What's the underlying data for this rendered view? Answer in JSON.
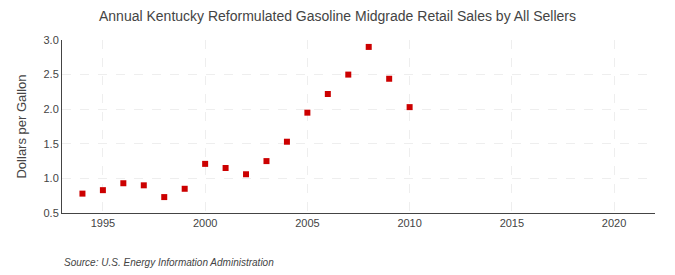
{
  "chart_data": {
    "type": "scatter",
    "title": "Annual Kentucky Reformulated Gasoline Midgrade Retail Sales by All Sellers",
    "ylabel": "Dollars per Gallon",
    "source": "Source: U.S. Energy Information Administration",
    "x": [
      1994,
      1995,
      1996,
      1997,
      1998,
      1999,
      2000,
      2001,
      2002,
      2003,
      2004,
      2005,
      2006,
      2007,
      2008,
      2009,
      2010
    ],
    "values": [
      0.78,
      0.83,
      0.93,
      0.9,
      0.73,
      0.85,
      1.21,
      1.15,
      1.06,
      1.25,
      1.53,
      1.95,
      2.22,
      2.5,
      2.9,
      2.44,
      2.03
    ],
    "color": "#cc0000",
    "marker": "square",
    "xlim": [
      1993,
      2022
    ],
    "xticks": [
      1995,
      2000,
      2005,
      2010,
      2015,
      2020
    ],
    "ylim": [
      0.5,
      3.0
    ],
    "yticks": [
      0.5,
      {
        "value": 1.0,
        "label": "1.0"
      },
      1.5,
      {
        "value": 2.0,
        "label": "2.0"
      },
      2.5,
      {
        "value": 3.0,
        "label": "3.0"
      }
    ],
    "grid": true
  }
}
